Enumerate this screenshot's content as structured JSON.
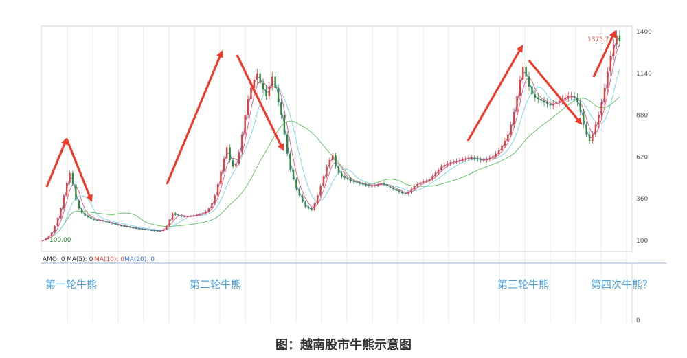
{
  "caption": "图：越南股市牛熊示意图",
  "colors": {
    "candle_up": "#e0413a",
    "candle_down": "#2d8a3e",
    "ma5": "#5a6fe0",
    "ma10": "#e05a8a",
    "ma20": "#7fd6e8",
    "ma60": "#6cc070",
    "arrow": "#f03a2a",
    "phase_label": "#4fa3d8"
  },
  "indicator_bar": {
    "items": [
      {
        "text": "AMO: 0",
        "color": "#333333"
      },
      {
        "text": "MA(5): 0",
        "color": "#333333"
      },
      {
        "text": "MA(10): 0",
        "color": "#e0413a"
      },
      {
        "text": "MA(20): 0",
        "color": "#3b6fe0"
      }
    ]
  },
  "phase_labels": [
    "第一轮牛熊",
    "第二轮牛熊",
    "第三轮牛熊",
    "第四次牛熊？"
  ],
  "chart_data": {
    "type": "line",
    "y_ticks": [
      "1400",
      "1140",
      "880",
      "620",
      "360",
      "100"
    ],
    "ylim": [
      100,
      1400
    ],
    "volume_tick": "0",
    "annotations": {
      "start_value": "100.00",
      "peak_value": "1375.7"
    },
    "series": [
      {
        "values": [
          100,
          110,
          125,
          150,
          190,
          240,
          300,
          380,
          460,
          520,
          450,
          350,
          300,
          270,
          255,
          245,
          235,
          230,
          225,
          225,
          220,
          215,
          210,
          205,
          200,
          195,
          190,
          188,
          185,
          180,
          178,
          175,
          172,
          170,
          168,
          165,
          163,
          162,
          160,
          160,
          170,
          190,
          230,
          270,
          260,
          255,
          250,
          250,
          250,
          252,
          255,
          260,
          265,
          270,
          280,
          300,
          330,
          380,
          450,
          530,
          610,
          680,
          600,
          560,
          580,
          650,
          760,
          880,
          980,
          1050,
          1100,
          1140,
          1080,
          1040,
          1000,
          1060,
          1120,
          1050,
          960,
          880,
          760,
          640,
          540,
          480,
          420,
          380,
          340,
          310,
          300,
          290,
          330,
          380,
          440,
          500,
          560,
          600,
          630,
          560,
          520,
          500,
          490,
          480,
          470,
          465,
          460,
          455,
          450,
          445,
          440,
          440,
          445,
          450,
          455,
          450,
          440,
          430,
          420,
          410,
          400,
          395,
          390,
          400,
          420,
          440,
          450,
          460,
          470,
          470,
          480,
          500,
          520,
          540,
          560,
          570,
          580,
          585,
          590,
          595,
          600,
          605,
          610,
          615,
          615,
          610,
          605,
          600,
          600,
          605,
          615,
          625,
          640,
          660,
          690,
          720,
          760,
          820,
          900,
          1000,
          1100,
          1180,
          1120,
          1060,
          1010,
          990,
          980,
          970,
          960,
          950,
          940,
          950,
          960,
          970,
          980,
          990,
          1000,
          1000,
          990,
          960,
          900,
          820,
          760,
          720,
          760,
          820,
          880,
          960,
          1050,
          1150,
          1250,
          1320,
          1375.7,
          1340
        ]
      }
    ]
  }
}
